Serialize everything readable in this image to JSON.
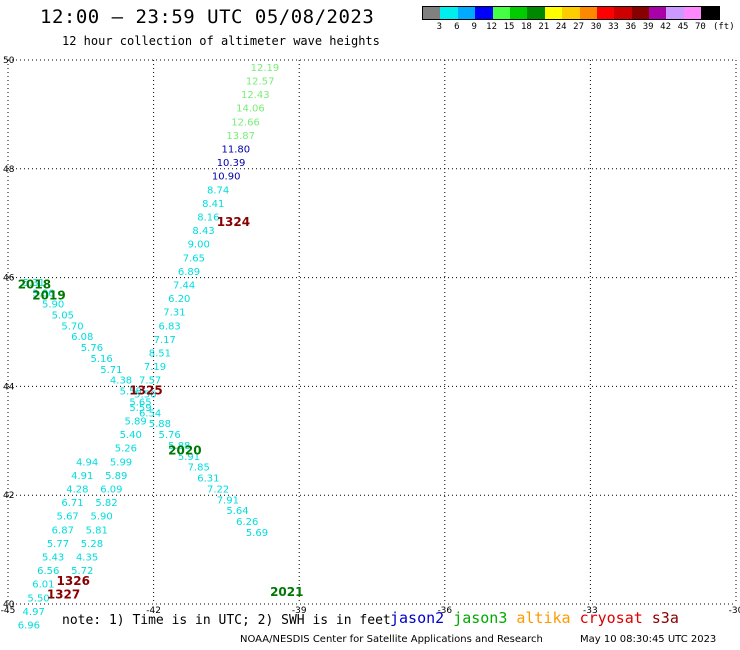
{
  "header": {
    "title": "12:00 – 23:59 UTC 05/08/2023",
    "subtitle": "12 hour collection of altimeter wave heights"
  },
  "legend": {
    "unit": "(ft)",
    "bins": [
      {
        "label": "3",
        "color": "#808080"
      },
      {
        "label": "6",
        "color": "#00eeee"
      },
      {
        "label": "9",
        "color": "#00aaff"
      },
      {
        "label": "12",
        "color": "#0000ff"
      },
      {
        "label": "15",
        "color": "#44ff44"
      },
      {
        "label": "18",
        "color": "#00cc00"
      },
      {
        "label": "21",
        "color": "#008800"
      },
      {
        "label": "24",
        "color": "#ffff00"
      },
      {
        "label": "27",
        "color": "#ffcc00"
      },
      {
        "label": "30",
        "color": "#ff8800"
      },
      {
        "label": "33",
        "color": "#ff0000"
      },
      {
        "label": "36",
        "color": "#cc0000"
      },
      {
        "label": "39",
        "color": "#880000"
      },
      {
        "label": "42",
        "color": "#aa00aa"
      },
      {
        "label": "45",
        "color": "#cc99ff"
      },
      {
        "label": "70",
        "color": "#ff88ff"
      },
      {
        "label": "",
        "color": "#000000"
      }
    ]
  },
  "axes": {
    "lon_ticks": [
      {
        "value": -45,
        "label": "-45"
      },
      {
        "value": -42,
        "label": "-42"
      },
      {
        "value": -39,
        "label": "-39"
      },
      {
        "value": -36,
        "label": "-36"
      },
      {
        "value": -33,
        "label": "-33"
      },
      {
        "value": -30,
        "label": "-30"
      }
    ],
    "lat_ticks": [
      {
        "value": 40,
        "label": "40"
      },
      {
        "value": 42,
        "label": "42"
      },
      {
        "value": 44,
        "label": "44"
      },
      {
        "value": 46,
        "label": "46"
      },
      {
        "value": 48,
        "label": "48"
      },
      {
        "value": 50,
        "label": "50"
      }
    ],
    "lon_range": [
      -45,
      -30
    ],
    "lat_range": [
      40,
      50
    ]
  },
  "track_colors": {
    "cyan": "#00dddd",
    "lightgreen": "#77ee77",
    "navy": "#0000aa",
    "darkgreen": "#007700",
    "darkred": "#880000"
  },
  "observations": [
    {
      "v": "12.19",
      "lon": -40.0,
      "lat": 49.8,
      "c": "lightgreen"
    },
    {
      "v": "12.57",
      "lon": -40.1,
      "lat": 49.55,
      "c": "lightgreen"
    },
    {
      "v": "12.43",
      "lon": -40.2,
      "lat": 49.3,
      "c": "lightgreen"
    },
    {
      "v": "14.06",
      "lon": -40.3,
      "lat": 49.05,
      "c": "lightgreen"
    },
    {
      "v": "12.66",
      "lon": -40.4,
      "lat": 48.8,
      "c": "lightgreen"
    },
    {
      "v": "13.87",
      "lon": -40.5,
      "lat": 48.55,
      "c": "lightgreen"
    },
    {
      "v": "11.80",
      "lon": -40.6,
      "lat": 48.3,
      "c": "navy"
    },
    {
      "v": "10.39",
      "lon": -40.7,
      "lat": 48.05,
      "c": "navy"
    },
    {
      "v": "10.90",
      "lon": -40.8,
      "lat": 47.8,
      "c": "navy"
    },
    {
      "v": "8.74",
      "lon": -40.9,
      "lat": 47.55,
      "c": "cyan"
    },
    {
      "v": "8.41",
      "lon": -41.0,
      "lat": 47.3,
      "c": "cyan"
    },
    {
      "v": "8.16",
      "lon": -41.1,
      "lat": 47.05,
      "c": "cyan"
    },
    {
      "v": "8.43",
      "lon": -41.2,
      "lat": 46.8,
      "c": "cyan"
    },
    {
      "v": "9.00",
      "lon": -41.3,
      "lat": 46.55,
      "c": "cyan"
    },
    {
      "v": "7.65",
      "lon": -41.4,
      "lat": 46.3,
      "c": "cyan"
    },
    {
      "v": "6.89",
      "lon": -41.5,
      "lat": 46.05,
      "c": "cyan"
    },
    {
      "v": "7.44",
      "lon": -41.6,
      "lat": 45.8,
      "c": "cyan"
    },
    {
      "v": "6.20",
      "lon": -41.7,
      "lat": 45.55,
      "c": "cyan"
    },
    {
      "v": "7.31",
      "lon": -41.8,
      "lat": 45.3,
      "c": "cyan"
    },
    {
      "v": "6.83",
      "lon": -41.9,
      "lat": 45.05,
      "c": "cyan"
    },
    {
      "v": "7.17",
      "lon": -42.0,
      "lat": 44.8,
      "c": "cyan"
    },
    {
      "v": "8.51",
      "lon": -42.1,
      "lat": 44.55,
      "c": "cyan"
    },
    {
      "v": "7.19",
      "lon": -42.2,
      "lat": 44.3,
      "c": "cyan"
    },
    {
      "v": "7.57",
      "lon": -42.3,
      "lat": 44.05,
      "c": "cyan"
    },
    {
      "v": "5.56",
      "lon": -42.4,
      "lat": 43.8,
      "c": "cyan"
    },
    {
      "v": "5.59",
      "lon": -42.5,
      "lat": 43.55,
      "c": "cyan"
    },
    {
      "v": "5.89",
      "lon": -42.6,
      "lat": 43.3,
      "c": "cyan"
    },
    {
      "v": "5.40",
      "lon": -42.7,
      "lat": 43.05,
      "c": "cyan"
    },
    {
      "v": "5.26",
      "lon": -42.8,
      "lat": 42.8,
      "c": "cyan"
    },
    {
      "v": "5.99",
      "lon": -42.9,
      "lat": 42.55,
      "c": "cyan"
    },
    {
      "v": "5.89",
      "lon": -43.0,
      "lat": 42.3,
      "c": "cyan"
    },
    {
      "v": "6.09",
      "lon": -43.1,
      "lat": 42.05,
      "c": "cyan"
    },
    {
      "v": "5.82",
      "lon": -43.2,
      "lat": 41.8,
      "c": "cyan"
    },
    {
      "v": "5.90",
      "lon": -43.3,
      "lat": 41.55,
      "c": "cyan"
    },
    {
      "v": "5.81",
      "lon": -43.4,
      "lat": 41.3,
      "c": "cyan"
    },
    {
      "v": "5.28",
      "lon": -43.5,
      "lat": 41.05,
      "c": "cyan"
    },
    {
      "v": "4.35",
      "lon": -43.6,
      "lat": 40.8,
      "c": "cyan"
    },
    {
      "v": "5.72",
      "lon": -43.7,
      "lat": 40.55,
      "c": "cyan"
    },
    {
      "v": "5.31",
      "lon": -44.7,
      "lat": 45.85,
      "c": "cyan"
    },
    {
      "v": "3.86",
      "lon": -44.5,
      "lat": 45.65,
      "c": "cyan"
    },
    {
      "v": "5.90",
      "lon": -44.3,
      "lat": 45.45,
      "c": "cyan"
    },
    {
      "v": "5.05",
      "lon": -44.1,
      "lat": 45.25,
      "c": "cyan"
    },
    {
      "v": "5.70",
      "lon": -43.9,
      "lat": 45.05,
      "c": "cyan"
    },
    {
      "v": "6.08",
      "lon": -43.7,
      "lat": 44.85,
      "c": "cyan"
    },
    {
      "v": "5.76",
      "lon": -43.5,
      "lat": 44.65,
      "c": "cyan"
    },
    {
      "v": "5.16",
      "lon": -43.3,
      "lat": 44.45,
      "c": "cyan"
    },
    {
      "v": "5.71",
      "lon": -43.1,
      "lat": 44.25,
      "c": "cyan"
    },
    {
      "v": "4.38",
      "lon": -42.9,
      "lat": 44.05,
      "c": "cyan"
    },
    {
      "v": "5.58",
      "lon": -42.7,
      "lat": 43.85,
      "c": "cyan"
    },
    {
      "v": "5.65",
      "lon": -42.5,
      "lat": 43.65,
      "c": "cyan"
    },
    {
      "v": "6.54",
      "lon": -42.3,
      "lat": 43.45,
      "c": "cyan"
    },
    {
      "v": "5.88",
      "lon": -42.1,
      "lat": 43.25,
      "c": "cyan"
    },
    {
      "v": "5.76",
      "lon": -41.9,
      "lat": 43.05,
      "c": "cyan"
    },
    {
      "v": "5.88",
      "lon": -41.7,
      "lat": 42.85,
      "c": "cyan"
    },
    {
      "v": "5.91",
      "lon": -41.5,
      "lat": 42.65,
      "c": "cyan"
    },
    {
      "v": "7.85",
      "lon": -41.3,
      "lat": 42.45,
      "c": "cyan"
    },
    {
      "v": "6.31",
      "lon": -41.1,
      "lat": 42.25,
      "c": "cyan"
    },
    {
      "v": "7.22",
      "lon": -40.9,
      "lat": 42.05,
      "c": "cyan"
    },
    {
      "v": "7.91",
      "lon": -40.7,
      "lat": 41.85,
      "c": "cyan"
    },
    {
      "v": "5.64",
      "lon": -40.5,
      "lat": 41.65,
      "c": "cyan"
    },
    {
      "v": "6.26",
      "lon": -40.3,
      "lat": 41.45,
      "c": "cyan"
    },
    {
      "v": "5.69",
      "lon": -40.1,
      "lat": 41.25,
      "c": "cyan"
    },
    {
      "v": "4.94",
      "lon": -43.6,
      "lat": 42.55,
      "c": "cyan"
    },
    {
      "v": "4.91",
      "lon": -43.7,
      "lat": 42.3,
      "c": "cyan"
    },
    {
      "v": "4.28",
      "lon": -43.8,
      "lat": 42.05,
      "c": "cyan"
    },
    {
      "v": "6.71",
      "lon": -43.9,
      "lat": 41.8,
      "c": "cyan"
    },
    {
      "v": "5.67",
      "lon": -44.0,
      "lat": 41.55,
      "c": "cyan"
    },
    {
      "v": "6.87",
      "lon": -44.1,
      "lat": 41.3,
      "c": "cyan"
    },
    {
      "v": "5.77",
      "lon": -44.2,
      "lat": 41.05,
      "c": "cyan"
    },
    {
      "v": "5.43",
      "lon": -44.3,
      "lat": 40.8,
      "c": "cyan"
    },
    {
      "v": "6.56",
      "lon": -44.4,
      "lat": 40.55,
      "c": "cyan"
    },
    {
      "v": "6.01",
      "lon": -44.5,
      "lat": 40.3,
      "c": "cyan"
    },
    {
      "v": "5.50",
      "lon": -44.6,
      "lat": 40.05,
      "c": "cyan"
    },
    {
      "v": "4.97",
      "lon": -44.7,
      "lat": 39.8,
      "c": "cyan"
    },
    {
      "v": "6.96",
      "lon": -44.8,
      "lat": 39.55,
      "c": "cyan"
    }
  ],
  "pass_labels": [
    {
      "text": "1324",
      "lon": -40.7,
      "lat": 46.95,
      "c": "darkred"
    },
    {
      "text": "2018",
      "lon": -44.8,
      "lat": 45.8,
      "c": "darkgreen"
    },
    {
      "text": "2019",
      "lon": -44.5,
      "lat": 45.6,
      "c": "darkgreen"
    },
    {
      "text": "1325",
      "lon": -42.5,
      "lat": 43.85,
      "c": "darkred"
    },
    {
      "text": "2020",
      "lon": -41.7,
      "lat": 42.75,
      "c": "darkgreen"
    },
    {
      "text": "1326",
      "lon": -44.0,
      "lat": 40.35,
      "c": "darkred"
    },
    {
      "text": "1327",
      "lon": -44.2,
      "lat": 40.1,
      "c": "darkred"
    },
    {
      "text": "2021",
      "lon": -39.6,
      "lat": 40.15,
      "c": "darkgreen"
    }
  ],
  "footer": {
    "note": "note: 1) Time is in UTC; 2) SWH is in feet",
    "missions": [
      {
        "name": "jason2",
        "color": "#0000cc"
      },
      {
        "name": "jason3",
        "color": "#00aa00"
      },
      {
        "name": "altika",
        "color": "#ff9900"
      },
      {
        "name": "cryosat",
        "color": "#dd0000"
      },
      {
        "name": "s3a",
        "color": "#880000"
      }
    ],
    "credit": "NOAA/NESDIS Center for Satellite Applications and Research",
    "generated": "May 10 08:30:45 UTC 2023"
  }
}
